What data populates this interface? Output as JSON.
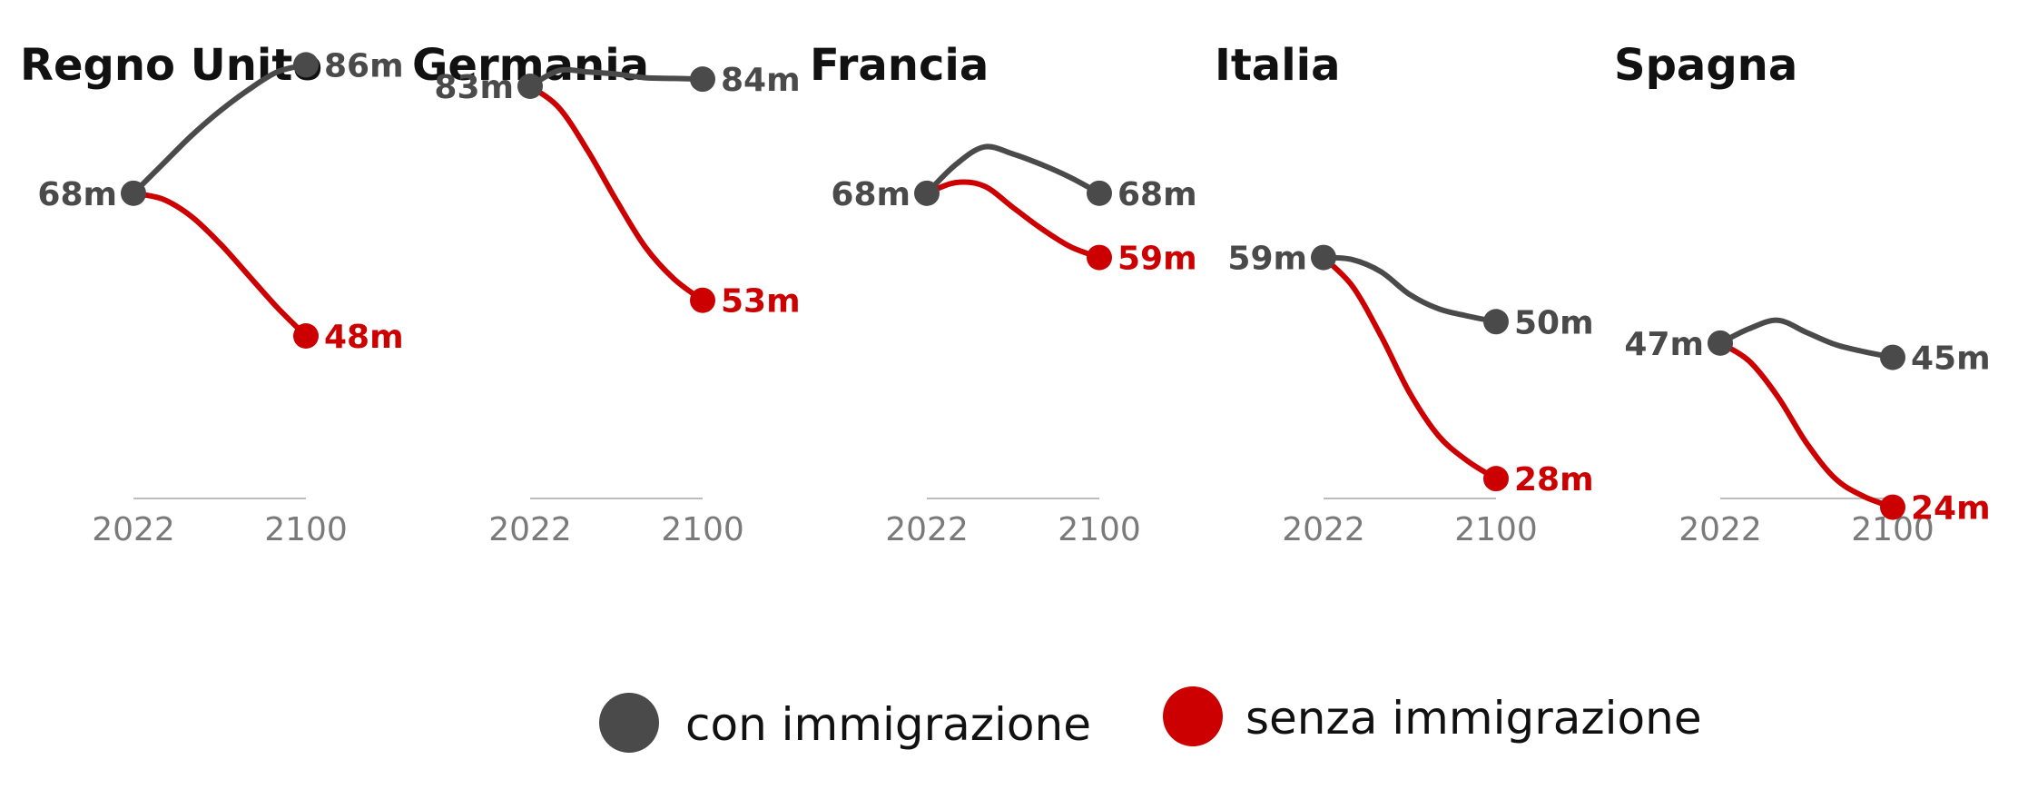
{
  "chart_data": {
    "type": "line",
    "colors": {
      "with": "#4a4a4a",
      "without": "#cc0000",
      "axis": "#bdbdbd",
      "tick": "#7a7a7a"
    },
    "x_ticks": [
      "2022",
      "2100"
    ],
    "y_range": [
      20,
      90
    ],
    "legend": [
      {
        "key": "with",
        "label": "con immigrazione"
      },
      {
        "key": "without",
        "label": "senza immigrazione"
      }
    ],
    "panels": [
      {
        "title": "Regno Unito",
        "start": {
          "value": 68,
          "label": "68m"
        },
        "with": {
          "path": [
            68,
            72,
            76,
            79.5,
            82.5,
            85,
            86
          ],
          "end_label": "86m"
        },
        "without": {
          "path": [
            68,
            67.2,
            64.8,
            61,
            56.5,
            52,
            48
          ],
          "end_label": "48m"
        }
      },
      {
        "title": "Germania",
        "start": {
          "value": 83,
          "label": "83m"
        },
        "with": {
          "path": [
            83,
            85.2,
            85,
            84.7,
            84.2,
            84.1,
            84
          ],
          "end_label": "84m"
        },
        "without": {
          "path": [
            83,
            80,
            74,
            67,
            60.5,
            56,
            53
          ],
          "end_label": "53m"
        }
      },
      {
        "title": "Francia",
        "start": {
          "value": 68,
          "label": "68m"
        },
        "with": {
          "path": [
            68,
            72,
            74.5,
            73.5,
            72,
            70.2,
            68
          ],
          "end_label": "68m"
        },
        "without": {
          "path": [
            68,
            69.5,
            69,
            66,
            63,
            60.5,
            59
          ],
          "end_label": "59m"
        }
      },
      {
        "title": "Italia",
        "start": {
          "value": 59,
          "label": "59m"
        },
        "with": {
          "path": [
            59,
            58.7,
            57,
            53.8,
            51.8,
            50.8,
            50
          ],
          "end_label": "50m"
        },
        "without": {
          "path": [
            59,
            55,
            48,
            40,
            34,
            30.5,
            28
          ],
          "end_label": "28m"
        }
      },
      {
        "title": "Spagna",
        "start": {
          "value": 47,
          "label": "47m"
        },
        "with": {
          "path": [
            47,
            49,
            50.2,
            48.5,
            46.8,
            45.8,
            45
          ],
          "end_label": "45m"
        },
        "without": {
          "path": [
            47,
            44.5,
            39.5,
            33,
            28,
            25.5,
            24
          ],
          "end_label": "24m"
        }
      }
    ]
  }
}
